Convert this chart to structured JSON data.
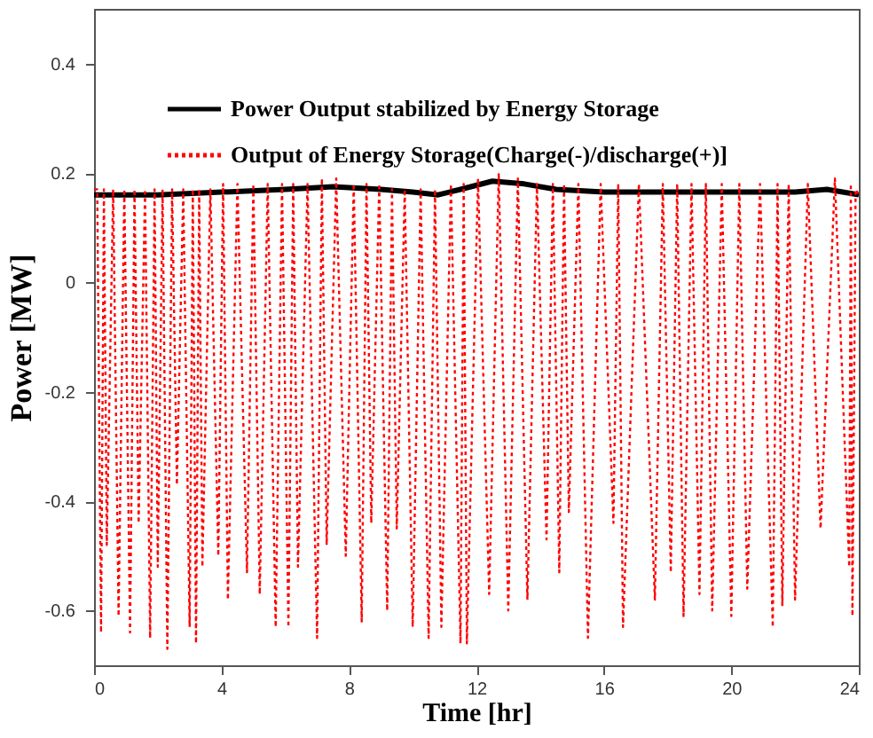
{
  "chart_data": {
    "type": "line",
    "xlabel": "Time [hr]",
    "ylabel": "Power [MW]",
    "xlim": [
      0,
      24
    ],
    "xticks": [
      0,
      4,
      8,
      12,
      16,
      20,
      24
    ],
    "ylim": [
      -0.7,
      0.5
    ],
    "yticks": [
      -0.6,
      -0.4,
      -0.2,
      0,
      0.2,
      0.4
    ],
    "legend": "top left",
    "grid": false,
    "series": [
      {
        "name": "Power Output stabilized by Energy Storage",
        "color": "#000000",
        "line_style": "solid",
        "x": [
          0,
          2,
          4,
          6,
          7.5,
          9,
          10,
          10.8,
          11.5,
          12.5,
          13.5,
          14.5,
          16,
          18,
          20,
          22,
          23,
          24
        ],
        "values": [
          0.16,
          0.16,
          0.165,
          0.17,
          0.175,
          0.17,
          0.165,
          0.16,
          0.17,
          0.185,
          0.18,
          0.17,
          0.165,
          0.165,
          0.165,
          0.165,
          0.17,
          0.16
        ]
      },
      {
        "name": "Output of Energy Storage(Charge(-)/discharge(+)]",
        "color": "#ff0000",
        "line_style": "dotted",
        "x": [
          0,
          0.1,
          0.22,
          0.31,
          0.4,
          0.6,
          0.77,
          0.95,
          1.13,
          1.27,
          1.4,
          1.6,
          1.76,
          1.9,
          2.0,
          2.15,
          2.3,
          2.45,
          2.6,
          2.8,
          3.0,
          3.1,
          3.2,
          3.3,
          3.4,
          3.65,
          3.9,
          4.05,
          4.2,
          4.5,
          4.8,
          5.0,
          5.2,
          5.45,
          5.7,
          5.9,
          6.1,
          6.25,
          6.4,
          6.7,
          7.0,
          7.15,
          7.3,
          7.6,
          7.9,
          8.15,
          8.4,
          8.55,
          8.7,
          8.95,
          9.2,
          9.35,
          9.5,
          9.75,
          10.0,
          10.25,
          10.5,
          10.7,
          10.9,
          11.2,
          11.5,
          11.6,
          11.7,
          12.05,
          12.4,
          12.7,
          13.0,
          13.3,
          13.6,
          13.9,
          14.2,
          14.4,
          14.6,
          14.75,
          14.9,
          15.2,
          15.5,
          15.9,
          16.3,
          16.45,
          16.6,
          17.1,
          17.6,
          17.85,
          18.1,
          18.3,
          18.5,
          18.75,
          19.0,
          19.2,
          19.4,
          19.7,
          20.0,
          20.25,
          20.5,
          20.9,
          21.3,
          21.45,
          21.6,
          21.8,
          22.0,
          22.4,
          22.8,
          23.25,
          23.7,
          23.75,
          23.8,
          23.9,
          24
        ],
        "values": [
          0.17,
          0.17,
          -0.64,
          0.17,
          -0.48,
          0.17,
          -0.61,
          0.17,
          -0.64,
          0.17,
          -0.44,
          0.17,
          -0.65,
          0.17,
          -0.52,
          0.17,
          -0.67,
          0.17,
          -0.37,
          0.17,
          -0.63,
          0.17,
          -0.66,
          0.17,
          -0.52,
          0.17,
          -0.5,
          0.18,
          -0.58,
          0.18,
          -0.53,
          0.18,
          -0.57,
          0.18,
          -0.63,
          0.18,
          -0.63,
          0.18,
          -0.52,
          0.18,
          -0.65,
          0.19,
          -0.48,
          0.19,
          -0.5,
          0.18,
          -0.62,
          0.18,
          -0.44,
          0.18,
          -0.6,
          0.17,
          -0.45,
          0.17,
          -0.63,
          0.17,
          -0.65,
          0.17,
          -0.63,
          0.18,
          -0.66,
          0.18,
          -0.66,
          0.19,
          -0.57,
          0.2,
          -0.6,
          0.19,
          -0.58,
          0.18,
          -0.47,
          0.18,
          -0.53,
          0.18,
          -0.42,
          0.18,
          -0.65,
          0.18,
          -0.44,
          0.18,
          -0.63,
          0.18,
          -0.58,
          0.18,
          -0.53,
          0.18,
          -0.61,
          0.18,
          -0.57,
          0.18,
          -0.6,
          0.18,
          -0.61,
          0.18,
          -0.56,
          0.18,
          -0.63,
          0.18,
          -0.59,
          0.18,
          -0.58,
          0.18,
          -0.45,
          0.19,
          -0.52,
          0.18,
          -0.61,
          0.17,
          0.16
        ]
      }
    ]
  }
}
